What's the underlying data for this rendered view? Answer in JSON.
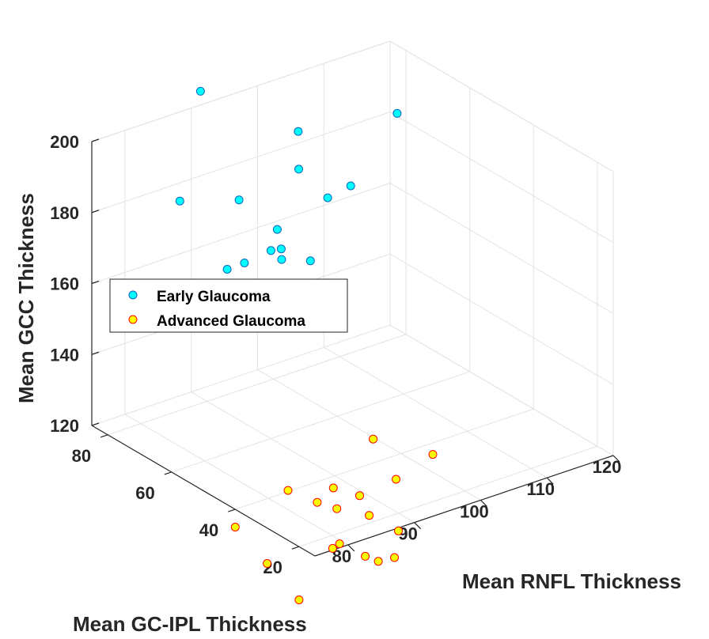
{
  "chart_data": {
    "type": "scatter",
    "title": "",
    "xlabel": "Mean RNFL Thickness",
    "ylabel": "Mean GC-IPL Thickness",
    "zlabel": "Mean GCC Thickness",
    "xlim": [
      75,
      120
    ],
    "ylim": [
      15,
      85
    ],
    "zlim": [
      120,
      200
    ],
    "xticks": [
      "80",
      "90",
      "100",
      "110",
      "120"
    ],
    "yticks": [
      "20",
      "40",
      "60",
      "80"
    ],
    "zticks": [
      "120",
      "140",
      "160",
      "180",
      "200"
    ],
    "grid": true,
    "legend_position": "center-left",
    "series": [
      {
        "name": "Early Glaucoma",
        "color": "#00FFFF",
        "points": [
          [
            89,
            80,
            208
          ],
          [
            97,
            66,
            199
          ],
          [
            110,
            62,
            198
          ],
          [
            103,
            62,
            182
          ],
          [
            100,
            63,
            180
          ],
          [
            90,
            70,
            182
          ],
          [
            86,
            60,
            172
          ],
          [
            83,
            74,
            184
          ],
          [
            82,
            40,
            186
          ],
          [
            81,
            55,
            176
          ],
          [
            90,
            60,
            173
          ],
          [
            95,
            58,
            168
          ],
          [
            82,
            52,
            165
          ],
          [
            85,
            50,
            168
          ],
          [
            93,
            63,
            170
          ],
          [
            99,
            70,
            185
          ],
          [
            90,
            58,
            180
          ],
          [
            87,
            51,
            160
          ]
        ]
      },
      {
        "name": "Advanced Glaucoma",
        "color": "#FFFF00",
        "points": [
          [
            91,
            30,
            135
          ],
          [
            85,
            30,
            125
          ],
          [
            93,
            27,
            124
          ],
          [
            100,
            30,
            125
          ],
          [
            82,
            38,
            122
          ],
          [
            88,
            28,
            122
          ],
          [
            84,
            33,
            120
          ],
          [
            86,
            31,
            118
          ],
          [
            88,
            25,
            118
          ],
          [
            84,
            26,
            112
          ],
          [
            82,
            24,
            113
          ],
          [
            90,
            20,
            115
          ],
          [
            85,
            20,
            111
          ],
          [
            87,
            15,
            112
          ],
          [
            86,
            18,
            110
          ],
          [
            75,
            40,
            115
          ],
          [
            75,
            30,
            110
          ],
          [
            75,
            20,
            105
          ]
        ]
      }
    ]
  }
}
